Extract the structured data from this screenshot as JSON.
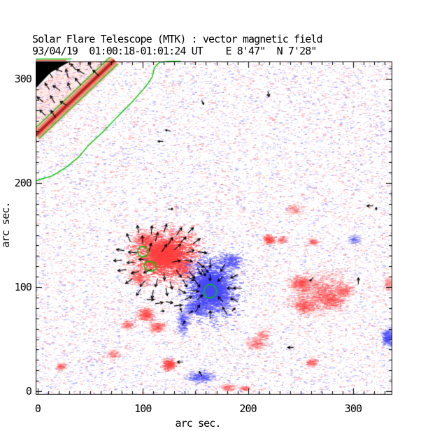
{
  "title": "Solar Flare Telescope (MTK) : vector magnetic field",
  "subtitle": "93/04/19  01:00:18-01:01:24 UT    E 8'47\"  N 7'28\"",
  "axes": {
    "xlabel": "arc sec.",
    "ylabel": "arc sec.",
    "x_ticks": [
      0,
      100,
      200,
      300
    ],
    "y_ticks": [
      0,
      100,
      200,
      300
    ],
    "minor_step": 10,
    "x_minor_max": 330,
    "y_minor_max": 310,
    "x_range": [
      -2,
      337
    ],
    "y_range": [
      -3,
      317
    ]
  },
  "colors": {
    "background": "#ffffff",
    "frame": "#000000",
    "text": "#000000",
    "positive_polarity": "#ff4646",
    "negative_polarity": "#5050fa",
    "contour_green": "#00c400",
    "vector_black": "#000000",
    "noise_red": "255,90,90",
    "noise_blue": "90,90,255"
  },
  "chart_data": {
    "type": "heatmap",
    "title": "Solar Flare Telescope (MTK) : vector magnetic field",
    "date": "93/04/19",
    "time_range_ut": "01:00:18-01:01:24 UT",
    "pointing": "E 8'47\"  N 7'28\"",
    "xlabel": "arc sec.",
    "ylabel": "arc sec.",
    "x_ticks": [
      0,
      100,
      200,
      300
    ],
    "y_ticks": [
      0,
      100,
      200,
      300
    ],
    "noise": {
      "count": 22000,
      "red_fraction": 0.52
    },
    "regions": [
      {
        "x": 120,
        "y": 131,
        "rx": 34,
        "ry": 26,
        "pol": "+",
        "int": 0.85,
        "n": 3200,
        "core": true
      },
      {
        "x": 101,
        "y": 146,
        "rx": 10,
        "ry": 8,
        "pol": "+",
        "int": 0.5,
        "n": 350
      },
      {
        "x": 137,
        "y": 118,
        "rx": 10,
        "ry": 9,
        "pol": "+",
        "int": 0.5,
        "n": 350
      },
      {
        "x": 94,
        "y": 110,
        "rx": 9,
        "ry": 8,
        "pol": "+",
        "int": 0.45,
        "n": 300
      },
      {
        "x": 113,
        "y": 62,
        "rx": 8,
        "ry": 6,
        "pol": "+",
        "int": 0.45,
        "n": 250
      },
      {
        "x": 164,
        "y": 99,
        "rx": 26,
        "ry": 32,
        "pol": "-",
        "int": 0.85,
        "n": 3200,
        "core": true
      },
      {
        "x": 183,
        "y": 125,
        "rx": 11,
        "ry": 8,
        "pol": "-",
        "int": 0.55,
        "n": 400
      },
      {
        "x": 150,
        "y": 80,
        "rx": 10,
        "ry": 9,
        "pol": "-",
        "int": 0.55,
        "n": 380
      },
      {
        "x": 137,
        "y": 67,
        "rx": 6,
        "ry": 14,
        "pol": "-",
        "int": 0.5,
        "n": 350
      },
      {
        "x": 154,
        "y": 14,
        "rx": 14,
        "ry": 6,
        "pol": "-",
        "int": 0.5,
        "n": 420
      },
      {
        "x": 332,
        "y": 52,
        "rx": 6,
        "ry": 10,
        "pol": "-",
        "int": 0.6,
        "n": 380
      },
      {
        "x": 300,
        "y": 146,
        "rx": 6,
        "ry": 5,
        "pol": "-",
        "int": 0.33,
        "n": 170
      },
      {
        "x": 267,
        "y": 96,
        "rx": 30,
        "ry": 22,
        "pol": "+",
        "int": 0.4,
        "n": 1500
      },
      {
        "x": 249,
        "y": 104,
        "rx": 11,
        "ry": 8,
        "pol": "+",
        "int": 0.45,
        "n": 420
      },
      {
        "x": 253,
        "y": 82,
        "rx": 12,
        "ry": 8,
        "pol": "+",
        "int": 0.45,
        "n": 430
      },
      {
        "x": 279,
        "y": 88,
        "rx": 13,
        "ry": 9,
        "pol": "+",
        "int": 0.45,
        "n": 450
      },
      {
        "x": 291,
        "y": 97,
        "rx": 8,
        "ry": 7,
        "pol": "+",
        "int": 0.4,
        "n": 260
      },
      {
        "x": 124,
        "y": 26,
        "rx": 7,
        "ry": 6,
        "pol": "+",
        "int": 0.6,
        "n": 330
      },
      {
        "x": 102,
        "y": 74,
        "rx": 9,
        "ry": 7,
        "pol": "+",
        "int": 0.5,
        "n": 380
      },
      {
        "x": 207,
        "y": 46,
        "rx": 10,
        "ry": 7,
        "pol": "+",
        "int": 0.33,
        "n": 300
      },
      {
        "x": 213,
        "y": 54,
        "rx": 7,
        "ry": 6,
        "pol": "+",
        "int": 0.3,
        "n": 170
      },
      {
        "x": 219,
        "y": 146,
        "rx": 6,
        "ry": 5,
        "pol": "+",
        "int": 0.5,
        "n": 240
      },
      {
        "x": 231,
        "y": 146,
        "rx": 5,
        "ry": 4,
        "pol": "+",
        "int": 0.33,
        "n": 140
      },
      {
        "x": 261,
        "y": 144,
        "rx": 5,
        "ry": 4,
        "pol": "+",
        "int": 0.33,
        "n": 140
      },
      {
        "x": 259,
        "y": 28,
        "rx": 6,
        "ry": 5,
        "pol": "+",
        "int": 0.4,
        "n": 180
      },
      {
        "x": 21,
        "y": 24,
        "rx": 5,
        "ry": 4,
        "pol": "+",
        "int": 0.35,
        "n": 140
      },
      {
        "x": 71,
        "y": 36,
        "rx": 7,
        "ry": 5,
        "pol": "+",
        "int": 0.3,
        "n": 160
      },
      {
        "x": 84,
        "y": 64,
        "rx": 6,
        "ry": 5,
        "pol": "+",
        "int": 0.35,
        "n": 160
      },
      {
        "x": 333,
        "y": 103,
        "rx": 5,
        "ry": 9,
        "pol": "+",
        "int": 0.28,
        "n": 200
      },
      {
        "x": 243,
        "y": 175,
        "rx": 9,
        "ry": 6,
        "pol": "+",
        "int": 0.25,
        "n": 200
      },
      {
        "x": 180,
        "y": 4,
        "rx": 8,
        "ry": 4,
        "pol": "+",
        "int": 0.35,
        "n": 160
      },
      {
        "x": 196,
        "y": 3,
        "rx": 6,
        "ry": 3,
        "pol": "+",
        "int": 0.3,
        "n": 120
      }
    ],
    "limb": {
      "dark_polygon": [
        [
          -2,
          317
        ],
        [
          31,
          317
        ],
        [
          12,
          306
        ],
        [
          -2,
          291
        ]
      ],
      "plage_polygon": [
        [
          -2,
          291
        ],
        [
          31,
          317
        ],
        [
          81,
          317
        ],
        [
          -2,
          238
        ]
      ],
      "band_line": [
        [
          -2,
          246
        ],
        [
          73,
          318
        ]
      ],
      "stripe_green": [
        [
          -2,
          319
        ],
        [
          32,
          319
        ]
      ],
      "stripe_red": [
        [
          -2,
          317.5
        ],
        [
          27,
          317.5
        ]
      ],
      "noise_count": 900
    },
    "contour_path": [
      [
        136,
        317
      ],
      [
        124,
        317
      ],
      [
        116,
        316
      ],
      [
        111,
        311
      ],
      [
        109,
        302
      ],
      [
        103,
        293
      ],
      [
        89,
        277
      ],
      [
        76,
        264
      ],
      [
        63,
        250
      ],
      [
        49,
        237
      ],
      [
        39,
        225
      ],
      [
        27,
        215
      ],
      [
        14,
        207
      ],
      [
        1,
        203
      ],
      [
        -4,
        201
      ]
    ],
    "contour_ovals": [
      [
        100,
        134,
        5,
        5
      ],
      [
        107,
        120,
        6,
        4.5
      ],
      [
        164,
        96,
        6,
        6.5
      ]
    ],
    "vectors": {
      "field": [
        [
          5,
          309,
          140,
          11
        ],
        [
          14,
          301,
          120,
          12
        ],
        [
          23,
          307,
          155,
          10
        ],
        [
          29,
          301,
          105,
          13
        ],
        [
          36,
          309,
          130,
          11
        ],
        [
          44,
          305,
          150,
          12
        ],
        [
          51,
          310,
          115,
          10
        ],
        [
          58,
          303,
          135,
          12
        ],
        [
          11,
          290,
          125,
          11
        ],
        [
          21,
          289,
          145,
          12
        ],
        [
          31,
          290,
          110,
          10
        ],
        [
          41,
          294,
          130,
          13
        ],
        [
          5,
          278,
          140,
          11
        ],
        [
          16,
          277,
          120,
          12
        ],
        [
          27,
          275,
          150,
          10
        ],
        [
          7,
          265,
          135,
          11
        ],
        [
          17,
          263,
          125,
          12
        ],
        [
          96,
          152,
          100,
          11
        ],
        [
          108,
          151,
          85,
          12
        ],
        [
          120,
          153,
          70,
          12
        ],
        [
          132,
          150,
          55,
          13
        ],
        [
          143,
          152,
          45,
          11
        ],
        [
          88,
          144,
          115,
          12
        ],
        [
          100,
          142,
          95,
          11
        ],
        [
          112,
          144,
          75,
          13
        ],
        [
          124,
          141,
          55,
          12
        ],
        [
          136,
          143,
          45,
          11
        ],
        [
          148,
          142,
          35,
          12
        ],
        [
          82,
          135,
          170,
          11
        ],
        [
          94,
          133,
          175,
          12
        ],
        [
          106,
          135,
          75,
          11
        ],
        [
          118,
          134,
          55,
          13
        ],
        [
          130,
          136,
          40,
          12
        ],
        [
          142,
          133,
          20,
          11
        ],
        [
          153,
          134,
          -10,
          12
        ],
        [
          80,
          126,
          185,
          12
        ],
        [
          92,
          124,
          185,
          11
        ],
        [
          104,
          126,
          175,
          12
        ],
        [
          128,
          124,
          10,
          12
        ],
        [
          140,
          126,
          -10,
          11
        ],
        [
          152,
          124,
          -40,
          12
        ],
        [
          158,
          120,
          -55,
          11
        ],
        [
          84,
          117,
          190,
          12
        ],
        [
          96,
          115,
          195,
          11
        ],
        [
          108,
          117,
          205,
          12
        ],
        [
          120,
          114,
          -85,
          11
        ],
        [
          132,
          116,
          -55,
          12
        ],
        [
          144,
          115,
          -50,
          13
        ],
        [
          156,
          117,
          -60,
          11
        ],
        [
          90,
          108,
          215,
          12
        ],
        [
          102,
          106,
          230,
          11
        ],
        [
          114,
          108,
          255,
          12
        ],
        [
          126,
          105,
          -75,
          11
        ],
        [
          138,
          107,
          -60,
          12
        ],
        [
          150,
          106,
          -55,
          11
        ],
        [
          98,
          98,
          235,
          11
        ],
        [
          110,
          97,
          260,
          12
        ],
        [
          122,
          99,
          -80,
          11
        ],
        [
          134,
          98,
          -30,
          12
        ],
        [
          146,
          97,
          -10,
          11
        ],
        [
          104,
          88,
          0,
          10
        ],
        [
          112,
          84,
          10,
          11
        ],
        [
          122,
          86,
          -10,
          10
        ],
        [
          130,
          82,
          5,
          11
        ],
        [
          164,
          126,
          -90,
          11
        ],
        [
          178,
          122,
          -121,
          12
        ],
        [
          190,
          112,
          -153,
          11
        ],
        [
          194,
          99,
          180,
          12
        ],
        [
          190,
          86,
          153,
          11
        ],
        [
          180,
          74,
          123,
          12
        ],
        [
          164,
          70,
          90,
          11
        ],
        [
          150,
          76,
          59,
          12
        ],
        [
          140,
          88,
          25,
          11
        ],
        [
          142,
          110,
          -27,
          12
        ],
        [
          152,
          118,
          -58,
          11
        ],
        [
          176,
          86,
          133,
          10
        ],
        [
          152,
          88,
          43,
          10
        ],
        [
          176,
          110,
          -137,
          10
        ],
        [
          186,
          99,
          180,
          9
        ],
        [
          164,
          112,
          -90,
          9
        ]
      ],
      "isolated": [
        [
          219,
          288,
          -80,
          8
        ],
        [
          126,
          250,
          170,
          7
        ],
        [
          119,
          240,
          180,
          7
        ],
        [
          156,
          279,
          -60,
          6
        ],
        [
          319,
          178,
          180,
          9
        ],
        [
          322,
          174,
          90,
          4
        ],
        [
          124,
          175,
          0,
          7
        ],
        [
          138,
          28,
          180,
          8
        ],
        [
          156,
          15,
          120,
          7
        ],
        [
          243,
          42,
          180,
          8
        ],
        [
          305,
          103,
          90,
          9
        ],
        [
          262,
          109,
          -135,
          7
        ],
        [
          185,
          77,
          45,
          6
        ],
        [
          117,
          77,
          0,
          5
        ],
        [
          144,
          75,
          30,
          6
        ],
        [
          137,
          76,
          110,
          6
        ],
        [
          138,
          64,
          60,
          6
        ]
      ]
    }
  }
}
